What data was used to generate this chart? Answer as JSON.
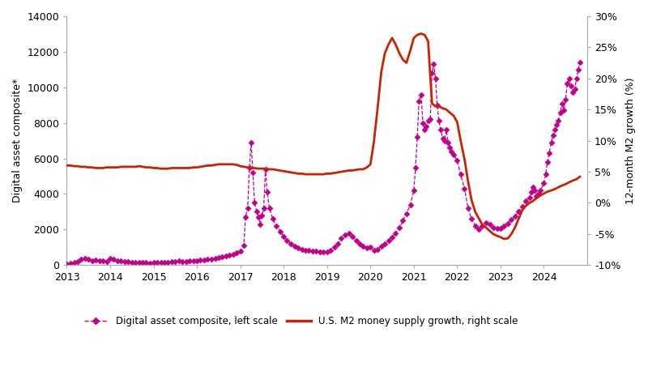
{
  "ylabel_left": "Digital asset composite*",
  "ylabel_right": "12-month M2 growth (%)",
  "left_ylim": [
    0,
    14000
  ],
  "right_ylim": [
    -0.1,
    0.3
  ],
  "left_yticks": [
    0,
    2000,
    4000,
    6000,
    8000,
    10000,
    12000,
    14000
  ],
  "right_yticks": [
    -0.1,
    -0.05,
    0.0,
    0.05,
    0.1,
    0.15,
    0.2,
    0.25,
    0.3
  ],
  "digital_color": "#c0008c",
  "m2_color": "#cc2200",
  "legend_labels": [
    "Digital asset composite, left scale",
    "U.S. M2 money supply growth, right scale"
  ],
  "xlim": [
    2013.0,
    2025.0
  ],
  "xticks": [
    2013,
    2014,
    2015,
    2016,
    2017,
    2018,
    2019,
    2020,
    2021,
    2022,
    2023,
    2024
  ],
  "digital_data": [
    [
      2013.0,
      80
    ],
    [
      2013.08,
      100
    ],
    [
      2013.17,
      130
    ],
    [
      2013.25,
      200
    ],
    [
      2013.33,
      310
    ],
    [
      2013.42,
      380
    ],
    [
      2013.5,
      310
    ],
    [
      2013.58,
      260
    ],
    [
      2013.67,
      290
    ],
    [
      2013.75,
      230
    ],
    [
      2013.83,
      250
    ],
    [
      2013.92,
      200
    ],
    [
      2014.0,
      370
    ],
    [
      2014.08,
      320
    ],
    [
      2014.17,
      260
    ],
    [
      2014.25,
      240
    ],
    [
      2014.33,
      210
    ],
    [
      2014.42,
      190
    ],
    [
      2014.5,
      170
    ],
    [
      2014.58,
      155
    ],
    [
      2014.67,
      150
    ],
    [
      2014.75,
      140
    ],
    [
      2014.83,
      130
    ],
    [
      2014.92,
      120
    ],
    [
      2015.0,
      150
    ],
    [
      2015.08,
      140
    ],
    [
      2015.17,
      160
    ],
    [
      2015.25,
      155
    ],
    [
      2015.33,
      170
    ],
    [
      2015.42,
      190
    ],
    [
      2015.5,
      210
    ],
    [
      2015.58,
      220
    ],
    [
      2015.67,
      200
    ],
    [
      2015.75,
      210
    ],
    [
      2015.83,
      220
    ],
    [
      2015.92,
      240
    ],
    [
      2016.0,
      260
    ],
    [
      2016.08,
      280
    ],
    [
      2016.17,
      300
    ],
    [
      2016.25,
      320
    ],
    [
      2016.33,
      350
    ],
    [
      2016.42,
      380
    ],
    [
      2016.5,
      400
    ],
    [
      2016.58,
      450
    ],
    [
      2016.67,
      500
    ],
    [
      2016.75,
      560
    ],
    [
      2016.83,
      620
    ],
    [
      2016.92,
      700
    ],
    [
      2017.0,
      800
    ],
    [
      2017.08,
      1100
    ],
    [
      2017.12,
      2700
    ],
    [
      2017.17,
      3200
    ],
    [
      2017.21,
      5500
    ],
    [
      2017.25,
      6900
    ],
    [
      2017.29,
      5200
    ],
    [
      2017.33,
      3500
    ],
    [
      2017.38,
      3000
    ],
    [
      2017.42,
      2700
    ],
    [
      2017.46,
      2300
    ],
    [
      2017.5,
      2800
    ],
    [
      2017.54,
      3200
    ],
    [
      2017.58,
      5400
    ],
    [
      2017.62,
      4100
    ],
    [
      2017.67,
      3200
    ],
    [
      2017.75,
      2600
    ],
    [
      2017.83,
      2200
    ],
    [
      2017.92,
      1900
    ],
    [
      2018.0,
      1600
    ],
    [
      2018.08,
      1400
    ],
    [
      2018.17,
      1200
    ],
    [
      2018.25,
      1050
    ],
    [
      2018.33,
      950
    ],
    [
      2018.42,
      900
    ],
    [
      2018.5,
      850
    ],
    [
      2018.58,
      820
    ],
    [
      2018.67,
      800
    ],
    [
      2018.75,
      780
    ],
    [
      2018.83,
      760
    ],
    [
      2018.92,
      740
    ],
    [
      2019.0,
      760
    ],
    [
      2019.08,
      850
    ],
    [
      2019.17,
      1000
    ],
    [
      2019.25,
      1200
    ],
    [
      2019.33,
      1500
    ],
    [
      2019.42,
      1700
    ],
    [
      2019.5,
      1800
    ],
    [
      2019.58,
      1600
    ],
    [
      2019.67,
      1400
    ],
    [
      2019.75,
      1200
    ],
    [
      2019.83,
      1050
    ],
    [
      2019.92,
      950
    ],
    [
      2020.0,
      1000
    ],
    [
      2020.08,
      850
    ],
    [
      2020.17,
      900
    ],
    [
      2020.25,
      1050
    ],
    [
      2020.33,
      1200
    ],
    [
      2020.42,
      1400
    ],
    [
      2020.5,
      1550
    ],
    [
      2020.58,
      1800
    ],
    [
      2020.67,
      2100
    ],
    [
      2020.75,
      2500
    ],
    [
      2020.83,
      2900
    ],
    [
      2020.92,
      3400
    ],
    [
      2021.0,
      4200
    ],
    [
      2021.04,
      5500
    ],
    [
      2021.08,
      7200
    ],
    [
      2021.12,
      9200
    ],
    [
      2021.17,
      9600
    ],
    [
      2021.21,
      8000
    ],
    [
      2021.25,
      7600
    ],
    [
      2021.29,
      7800
    ],
    [
      2021.33,
      8100
    ],
    [
      2021.38,
      8200
    ],
    [
      2021.42,
      10800
    ],
    [
      2021.46,
      11300
    ],
    [
      2021.5,
      10500
    ],
    [
      2021.54,
      9000
    ],
    [
      2021.58,
      8100
    ],
    [
      2021.62,
      7600
    ],
    [
      2021.67,
      7100
    ],
    [
      2021.71,
      7000
    ],
    [
      2021.75,
      7600
    ],
    [
      2021.79,
      6900
    ],
    [
      2021.83,
      6600
    ],
    [
      2021.87,
      6400
    ],
    [
      2021.92,
      6200
    ],
    [
      2022.0,
      5900
    ],
    [
      2022.08,
      5100
    ],
    [
      2022.17,
      4300
    ],
    [
      2022.25,
      3200
    ],
    [
      2022.33,
      2600
    ],
    [
      2022.42,
      2200
    ],
    [
      2022.5,
      2000
    ],
    [
      2022.58,
      2200
    ],
    [
      2022.67,
      2400
    ],
    [
      2022.75,
      2300
    ],
    [
      2022.83,
      2100
    ],
    [
      2022.92,
      2050
    ],
    [
      2023.0,
      2050
    ],
    [
      2023.08,
      2200
    ],
    [
      2023.17,
      2350
    ],
    [
      2023.25,
      2550
    ],
    [
      2023.33,
      2750
    ],
    [
      2023.42,
      3000
    ],
    [
      2023.5,
      3300
    ],
    [
      2023.58,
      3600
    ],
    [
      2023.67,
      3800
    ],
    [
      2023.71,
      4100
    ],
    [
      2023.75,
      4400
    ],
    [
      2023.79,
      4200
    ],
    [
      2023.83,
      3900
    ],
    [
      2023.87,
      4000
    ],
    [
      2023.92,
      4200
    ],
    [
      2024.0,
      4600
    ],
    [
      2024.04,
      5100
    ],
    [
      2024.08,
      5800
    ],
    [
      2024.12,
      6300
    ],
    [
      2024.17,
      6900
    ],
    [
      2024.21,
      7300
    ],
    [
      2024.25,
      7600
    ],
    [
      2024.29,
      7900
    ],
    [
      2024.33,
      8100
    ],
    [
      2024.38,
      8600
    ],
    [
      2024.42,
      9100
    ],
    [
      2024.46,
      8700
    ],
    [
      2024.5,
      9300
    ],
    [
      2024.54,
      10200
    ],
    [
      2024.58,
      10500
    ],
    [
      2024.62,
      10100
    ],
    [
      2024.67,
      9700
    ],
    [
      2024.71,
      9900
    ],
    [
      2024.75,
      10500
    ],
    [
      2024.79,
      11000
    ],
    [
      2024.83,
      11400
    ]
  ],
  "m2_data": [
    [
      2013.0,
      0.06
    ],
    [
      2013.08,
      0.06
    ],
    [
      2013.17,
      0.059
    ],
    [
      2013.25,
      0.059
    ],
    [
      2013.33,
      0.058
    ],
    [
      2013.42,
      0.058
    ],
    [
      2013.5,
      0.057
    ],
    [
      2013.58,
      0.057
    ],
    [
      2013.67,
      0.056
    ],
    [
      2013.75,
      0.056
    ],
    [
      2013.83,
      0.056
    ],
    [
      2013.92,
      0.057
    ],
    [
      2014.0,
      0.057
    ],
    [
      2014.08,
      0.057
    ],
    [
      2014.17,
      0.057
    ],
    [
      2014.25,
      0.058
    ],
    [
      2014.33,
      0.058
    ],
    [
      2014.42,
      0.058
    ],
    [
      2014.5,
      0.058
    ],
    [
      2014.58,
      0.058
    ],
    [
      2014.67,
      0.059
    ],
    [
      2014.75,
      0.058
    ],
    [
      2014.83,
      0.057
    ],
    [
      2014.92,
      0.057
    ],
    [
      2015.0,
      0.056
    ],
    [
      2015.08,
      0.056
    ],
    [
      2015.17,
      0.055
    ],
    [
      2015.25,
      0.055
    ],
    [
      2015.33,
      0.055
    ],
    [
      2015.42,
      0.056
    ],
    [
      2015.5,
      0.056
    ],
    [
      2015.58,
      0.056
    ],
    [
      2015.67,
      0.056
    ],
    [
      2015.75,
      0.056
    ],
    [
      2015.83,
      0.056
    ],
    [
      2015.92,
      0.057
    ],
    [
      2016.0,
      0.057
    ],
    [
      2016.08,
      0.058
    ],
    [
      2016.17,
      0.059
    ],
    [
      2016.25,
      0.06
    ],
    [
      2016.33,
      0.06
    ],
    [
      2016.42,
      0.061
    ],
    [
      2016.5,
      0.062
    ],
    [
      2016.58,
      0.062
    ],
    [
      2016.67,
      0.062
    ],
    [
      2016.75,
      0.062
    ],
    [
      2016.83,
      0.062
    ],
    [
      2016.92,
      0.061
    ],
    [
      2017.0,
      0.059
    ],
    [
      2017.08,
      0.058
    ],
    [
      2017.17,
      0.057
    ],
    [
      2017.25,
      0.056
    ],
    [
      2017.33,
      0.056
    ],
    [
      2017.42,
      0.055
    ],
    [
      2017.5,
      0.055
    ],
    [
      2017.58,
      0.055
    ],
    [
      2017.67,
      0.054
    ],
    [
      2017.75,
      0.054
    ],
    [
      2017.83,
      0.053
    ],
    [
      2017.92,
      0.052
    ],
    [
      2018.0,
      0.051
    ],
    [
      2018.08,
      0.05
    ],
    [
      2018.17,
      0.049
    ],
    [
      2018.25,
      0.048
    ],
    [
      2018.33,
      0.047
    ],
    [
      2018.42,
      0.047
    ],
    [
      2018.5,
      0.046
    ],
    [
      2018.58,
      0.046
    ],
    [
      2018.67,
      0.046
    ],
    [
      2018.75,
      0.046
    ],
    [
      2018.83,
      0.046
    ],
    [
      2018.92,
      0.046
    ],
    [
      2019.0,
      0.047
    ],
    [
      2019.08,
      0.047
    ],
    [
      2019.17,
      0.048
    ],
    [
      2019.25,
      0.049
    ],
    [
      2019.33,
      0.05
    ],
    [
      2019.42,
      0.051
    ],
    [
      2019.5,
      0.052
    ],
    [
      2019.58,
      0.052
    ],
    [
      2019.67,
      0.053
    ],
    [
      2019.75,
      0.054
    ],
    [
      2019.83,
      0.054
    ],
    [
      2019.92,
      0.057
    ],
    [
      2020.0,
      0.062
    ],
    [
      2020.08,
      0.098
    ],
    [
      2020.17,
      0.155
    ],
    [
      2020.25,
      0.21
    ],
    [
      2020.33,
      0.24
    ],
    [
      2020.42,
      0.255
    ],
    [
      2020.5,
      0.265
    ],
    [
      2020.58,
      0.255
    ],
    [
      2020.67,
      0.24
    ],
    [
      2020.75,
      0.23
    ],
    [
      2020.83,
      0.225
    ],
    [
      2020.92,
      0.245
    ],
    [
      2021.0,
      0.265
    ],
    [
      2021.08,
      0.27
    ],
    [
      2021.17,
      0.272
    ],
    [
      2021.25,
      0.27
    ],
    [
      2021.33,
      0.26
    ],
    [
      2021.42,
      0.16
    ],
    [
      2021.5,
      0.155
    ],
    [
      2021.58,
      0.155
    ],
    [
      2021.67,
      0.152
    ],
    [
      2021.75,
      0.15
    ],
    [
      2021.83,
      0.145
    ],
    [
      2021.92,
      0.14
    ],
    [
      2022.0,
      0.13
    ],
    [
      2022.08,
      0.1
    ],
    [
      2022.17,
      0.07
    ],
    [
      2022.25,
      0.035
    ],
    [
      2022.33,
      0.005
    ],
    [
      2022.42,
      -0.015
    ],
    [
      2022.5,
      -0.025
    ],
    [
      2022.58,
      -0.035
    ],
    [
      2022.67,
      -0.04
    ],
    [
      2022.75,
      -0.045
    ],
    [
      2022.83,
      -0.05
    ],
    [
      2022.92,
      -0.053
    ],
    [
      2023.0,
      -0.055
    ],
    [
      2023.08,
      -0.058
    ],
    [
      2023.17,
      -0.057
    ],
    [
      2023.25,
      -0.05
    ],
    [
      2023.33,
      -0.04
    ],
    [
      2023.42,
      -0.025
    ],
    [
      2023.5,
      -0.012
    ],
    [
      2023.58,
      -0.005
    ],
    [
      2023.67,
      0.0
    ],
    [
      2023.75,
      0.003
    ],
    [
      2023.83,
      0.008
    ],
    [
      2023.92,
      0.012
    ],
    [
      2024.0,
      0.015
    ],
    [
      2024.08,
      0.018
    ],
    [
      2024.17,
      0.02
    ],
    [
      2024.25,
      0.022
    ],
    [
      2024.33,
      0.025
    ],
    [
      2024.42,
      0.028
    ],
    [
      2024.5,
      0.03
    ],
    [
      2024.58,
      0.033
    ],
    [
      2024.67,
      0.036
    ],
    [
      2024.75,
      0.038
    ],
    [
      2024.83,
      0.042
    ]
  ]
}
